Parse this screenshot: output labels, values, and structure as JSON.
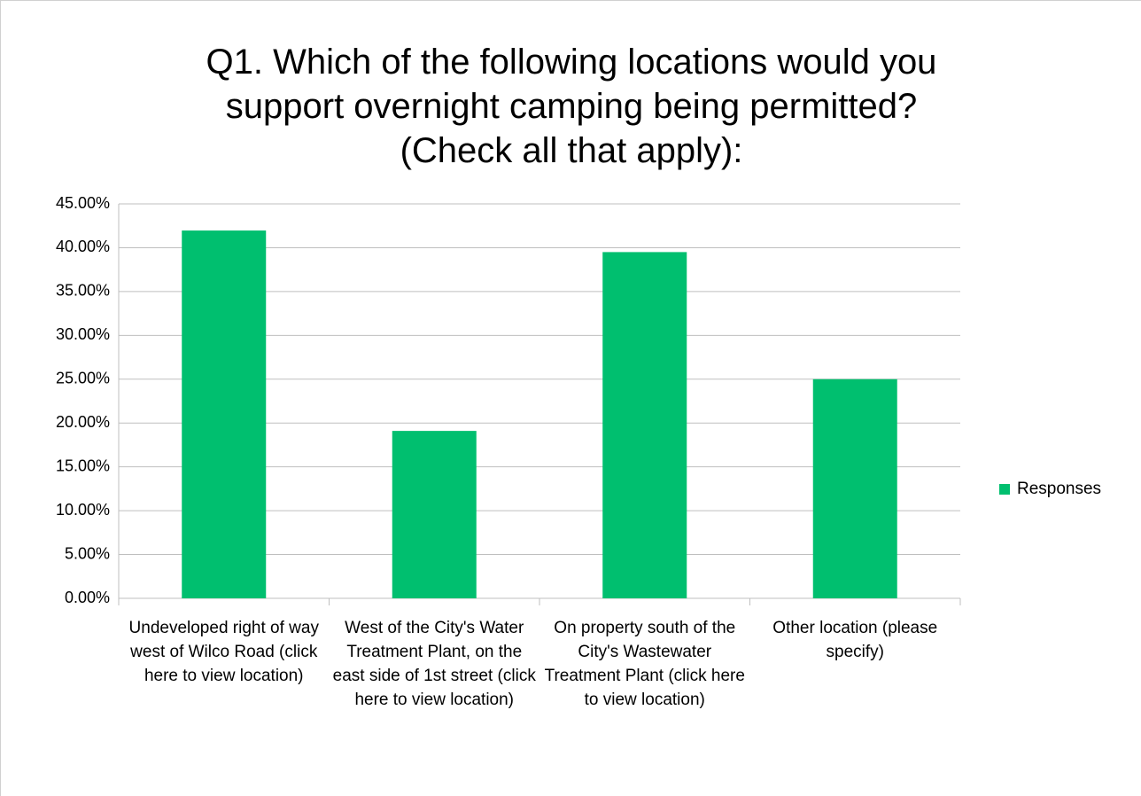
{
  "chart_data": {
    "type": "bar",
    "title": "Q1. Which of the following locations would you\nsupport overnight camping being permitted?\n(Check all that apply):",
    "categories": [
      "Undeveloped right of way west of Wilco Road (click here to view location)",
      "West of the City's Water Treatment Plant, on the east side of 1st street (click here to view location)",
      "On property south of the City's Wastewater Treatment Plant (click here to view location)",
      "Other location (please specify)"
    ],
    "series": [
      {
        "name": "Responses",
        "color": "#00bf6f",
        "values": [
          41.96,
          19.1,
          39.5,
          25
        ]
      }
    ],
    "ylim": [
      0,
      45
    ],
    "yticks": [
      {
        "value": 0,
        "label": "0.00%"
      },
      {
        "value": 5,
        "label": "5.00%"
      },
      {
        "value": 10,
        "label": "10.00%"
      },
      {
        "value": 15,
        "label": "15.00%"
      },
      {
        "value": 20,
        "label": "20.00%"
      },
      {
        "value": 25,
        "label": "25.00%"
      },
      {
        "value": 30,
        "label": "30.00%"
      },
      {
        "value": 35,
        "label": "35.00%"
      },
      {
        "value": 40,
        "label": "40.00%"
      },
      {
        "value": 45,
        "label": "45.00%"
      }
    ],
    "grid": true,
    "legend": "right"
  }
}
